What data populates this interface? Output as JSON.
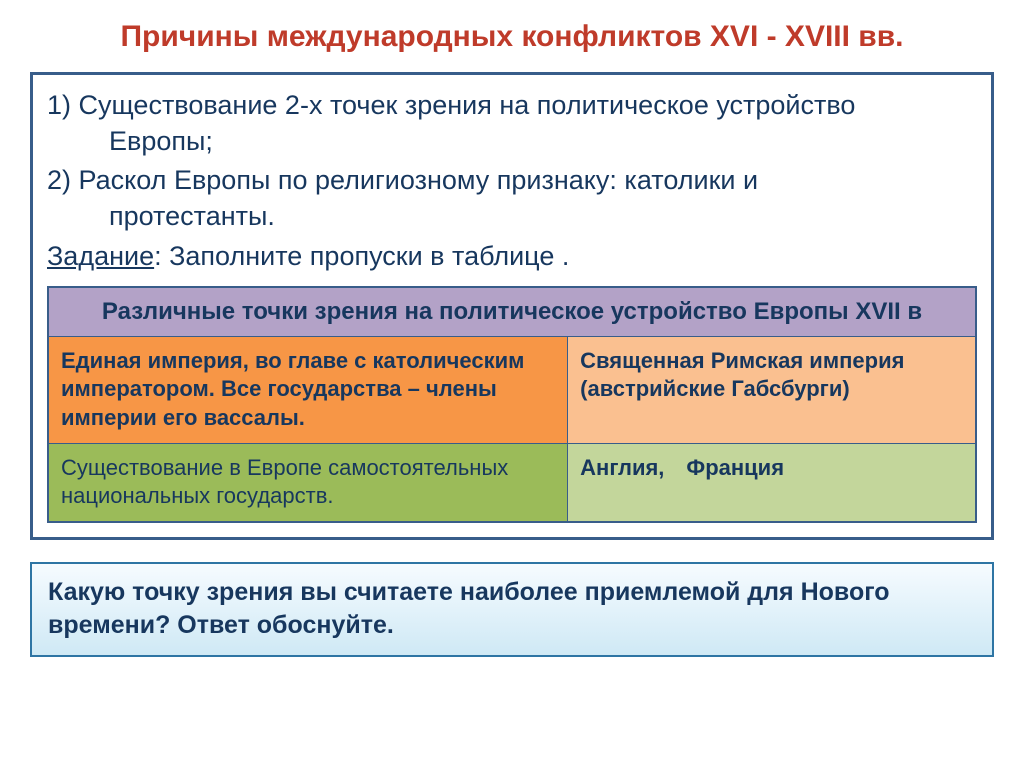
{
  "title": "Причины международных конфликтов XVI - XVIII вв.",
  "title_color": "#bf3b2a",
  "body_text_color": "#17375e",
  "list": {
    "item1_num": "1) ",
    "item1_text": "Существование 2-х точек зрения на политическое устройство",
    "item1_cont": "Европы;",
    "item2_num": "2) ",
    "item2_text": "Раскол Европы по религиозному признаку: католики и",
    "item2_cont": "протестанты."
  },
  "task": {
    "label": "Задание",
    "rest": ": Заполните  пропуски в  таблице ."
  },
  "table": {
    "header": "Различные точки зрения на политическое устройство Европы XVII в",
    "header_bg": "#b3a2c7",
    "row1_left": "Единая империя, во главе с католическим императором. Все государства – члены империи его вассалы.",
    "row1_right": "Священная Римская империя (австрийские Габсбурги)",
    "row1_bg_left": "#f79646",
    "row1_bg_right": "#fac090",
    "row2_left": "Существование в Европе самостоятельных национальных государств.",
    "row2_right_a": "Англия,",
    "row2_right_b": "Франция",
    "row2_bg_left": "#9bbb59",
    "row2_bg_right": "#c3d69b",
    "border_color": "#385d8a"
  },
  "main_box_border": "#385d8a",
  "question": {
    "text": "Какую точку зрения вы считаете наиболее приемлемой для Нового времени? Ответ обоснуйте.",
    "border_color": "#2e75a4"
  }
}
